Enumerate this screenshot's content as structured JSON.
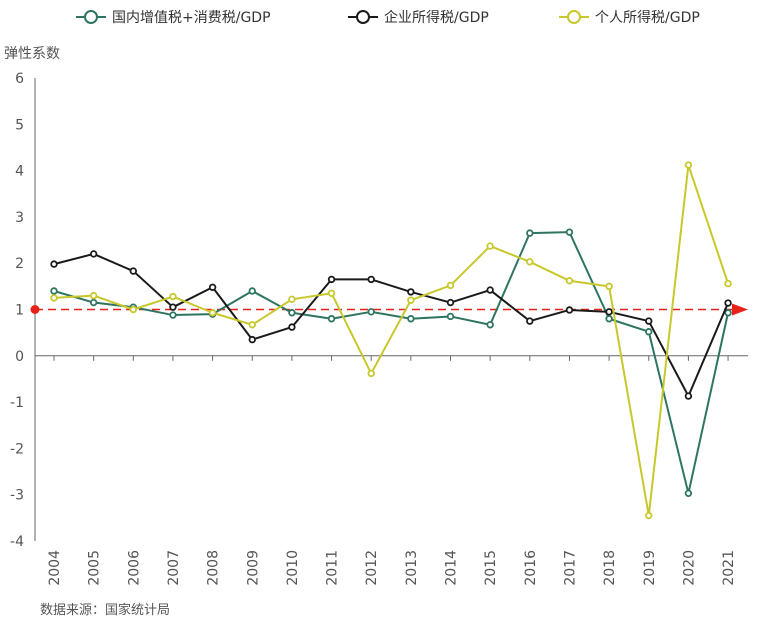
{
  "chart_data": {
    "type": "line",
    "ylabel": "弹性系数",
    "ylim": [
      -4,
      6
    ],
    "yticks": [
      -4,
      -3,
      -2,
      -1,
      0,
      1,
      2,
      3,
      4,
      5,
      6
    ],
    "categories": [
      "2004",
      "2005",
      "2006",
      "2007",
      "2008",
      "2009",
      "2010",
      "2011",
      "2012",
      "2013",
      "2014",
      "2015",
      "2016",
      "2017",
      "2018",
      "2019",
      "2020",
      "2021"
    ],
    "legend_position": "top",
    "series": [
      {
        "name": "国内增值税+消费税/GDP",
        "color": "#2e7561",
        "values": [
          1.4,
          1.15,
          1.05,
          0.88,
          0.9,
          1.4,
          0.93,
          0.8,
          0.95,
          0.8,
          0.85,
          0.67,
          2.65,
          2.67,
          0.8,
          0.52,
          -2.97,
          0.93
        ]
      },
      {
        "name": "企业所得税/GDP",
        "color": "#1a1a1a",
        "values": [
          1.98,
          2.2,
          1.83,
          1.05,
          1.48,
          0.35,
          0.62,
          1.65,
          1.65,
          1.38,
          1.15,
          1.42,
          0.75,
          0.99,
          0.95,
          0.75,
          -0.87,
          1.14
        ]
      },
      {
        "name": "个人所得税/GDP",
        "color": "#c8c82d",
        "values": [
          1.25,
          1.3,
          1.0,
          1.28,
          0.93,
          0.67,
          1.22,
          1.35,
          -0.38,
          1.2,
          1.52,
          2.37,
          2.03,
          1.62,
          1.5,
          -3.45,
          4.12,
          1.56
        ]
      }
    ],
    "reference_line": {
      "value": 1,
      "color": "#e8221a",
      "style": "dashed"
    }
  },
  "source_text": "数据来源：国家统计局"
}
